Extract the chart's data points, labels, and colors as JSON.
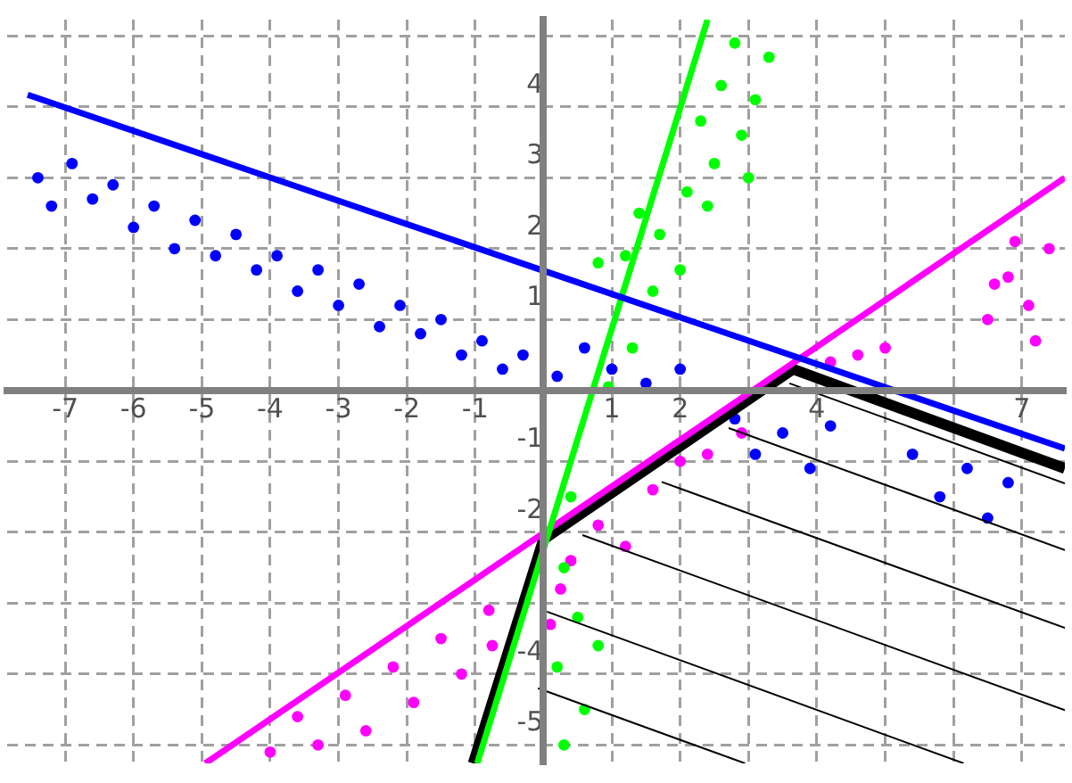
{
  "chart_data": {
    "type": "scatter",
    "xlim": [
      -7.85,
      7.63
    ],
    "ylim": [
      -5.26,
      5.23
    ],
    "xticks": [
      -7,
      -6,
      -5,
      -4,
      -3,
      -2,
      -1,
      {
        "value": 0,
        "label": null
      },
      1,
      2,
      {
        "value": 3,
        "label": null
      },
      4,
      {
        "value": 5,
        "label": null
      },
      {
        "value": 6,
        "label": null
      },
      7
    ],
    "yticks": [
      -5,
      -4,
      {
        "value": -3,
        "label": null
      },
      -2,
      -1,
      {
        "value": 0,
        "label": null
      },
      1,
      2,
      3,
      4,
      {
        "value": 5,
        "label": null
      }
    ],
    "grid": true,
    "series": [
      {
        "type": "scatter",
        "marker": "circle",
        "color": "#0000ff",
        "x": [
          -7.4,
          -7.2,
          -6.9,
          -6.6,
          -6.3,
          -6.0,
          -5.7,
          -5.4,
          -5.1,
          -4.8,
          -4.5,
          -4.2,
          -3.9,
          -3.6,
          -3.3,
          -3.0,
          -2.7,
          -2.4,
          -2.1,
          -1.8,
          -1.5,
          -1.2,
          -0.9,
          -0.6,
          -0.3,
          0.2,
          0.6,
          1.0,
          1.5,
          2.0,
          2.8,
          3.1,
          3.5,
          3.9,
          4.2,
          5.4,
          5.8,
          6.2,
          6.5,
          6.8
        ],
        "values": [
          3.0,
          2.6,
          3.2,
          2.7,
          2.9,
          2.3,
          2.6,
          2.0,
          2.4,
          1.9,
          2.2,
          1.7,
          1.9,
          1.4,
          1.7,
          1.2,
          1.5,
          0.9,
          1.2,
          0.8,
          1.0,
          0.5,
          0.7,
          0.3,
          0.5,
          0.2,
          0.6,
          0.3,
          0.1,
          0.3,
          -0.4,
          -0.9,
          -0.6,
          -1.1,
          -0.5,
          -0.9,
          -1.5,
          -1.1,
          -1.8,
          -1.3
        ]
      },
      {
        "type": "scatter",
        "marker": "circle",
        "color": "#00ff00",
        "x": [
          0.3,
          0.5,
          0.2,
          0.6,
          0.3,
          0.8,
          0.4,
          0.95,
          1.3,
          0.8,
          1.6,
          1.2,
          1.7,
          1.4,
          2.0,
          2.1,
          2.5,
          2.3,
          2.9,
          2.6,
          3.1,
          2.8,
          3.3,
          2.4,
          3.0
        ],
        "values": [
          -2.5,
          -3.2,
          -3.9,
          -4.5,
          -5.0,
          -3.6,
          -1.5,
          0.05,
          0.6,
          1.8,
          1.4,
          1.9,
          2.2,
          2.5,
          1.7,
          2.8,
          3.2,
          3.8,
          3.6,
          4.3,
          4.1,
          4.9,
          4.7,
          2.6,
          3.0
        ]
      },
      {
        "type": "scatter",
        "marker": "circle",
        "color": "#ff00ff",
        "x": [
          -4.0,
          -3.6,
          -3.3,
          -2.9,
          -2.6,
          -2.2,
          -1.9,
          -1.5,
          -1.2,
          -0.8,
          -0.75,
          0.25,
          0.1,
          0.4,
          0.8,
          1.2,
          1.6,
          2.0,
          2.4,
          2.9,
          4.2,
          4.6,
          5.0,
          6.5,
          6.8,
          7.1,
          7.4,
          6.9,
          7.2,
          6.6
        ],
        "values": [
          -5.1,
          -4.6,
          -5.0,
          -4.3,
          -4.8,
          -3.9,
          -4.4,
          -3.5,
          -4.0,
          -3.1,
          -3.6,
          -2.8,
          -3.3,
          -2.4,
          -1.9,
          -2.2,
          -1.4,
          -1.0,
          -0.9,
          -0.6,
          0.4,
          0.5,
          0.6,
          1.0,
          1.6,
          1.2,
          2.0,
          2.1,
          0.7,
          1.5
        ]
      },
      {
        "type": "line",
        "color": "#0000ff",
        "x": [
          -7.55,
          7.63
        ],
        "values": [
          4.17,
          -0.82
        ]
      },
      {
        "type": "line",
        "color": "#00ff00",
        "x": [
          -0.97,
          2.4
        ],
        "values": [
          -5.26,
          5.23
        ]
      },
      {
        "type": "line",
        "color": "#ff00ff",
        "x": [
          -4.95,
          7.63
        ],
        "values": [
          -5.26,
          3.0
        ]
      },
      {
        "type": "line",
        "color": "#000000",
        "x": [
          3.6,
          7.63
        ],
        "values": [
          0.1,
          -1.31
        ]
      },
      {
        "type": "line",
        "color": "#000000",
        "x": [
          2.71,
          7.63
        ],
        "values": [
          -0.53,
          -2.25
        ]
      },
      {
        "type": "line",
        "color": "#000000",
        "x": [
          1.73,
          7.63
        ],
        "values": [
          -1.29,
          -3.35
        ]
      },
      {
        "type": "line",
        "color": "#000000",
        "x": [
          0.57,
          7.63
        ],
        "values": [
          -2.04,
          -4.51
        ]
      },
      {
        "type": "line",
        "color": "#000000",
        "x": [
          0.05,
          6.15
        ],
        "values": [
          -3.12,
          -5.26
        ]
      },
      {
        "type": "line",
        "color": "#000000",
        "x": [
          -0.08,
          2.95
        ],
        "values": [
          -4.2,
          -5.26
        ]
      },
      {
        "type": "line",
        "color": "#000000",
        "x": [
          -1.03,
          0,
          3.65,
          7.63
        ],
        "values": [
          -5.26,
          -2.1,
          0.3,
          -1.1
        ]
      }
    ]
  }
}
